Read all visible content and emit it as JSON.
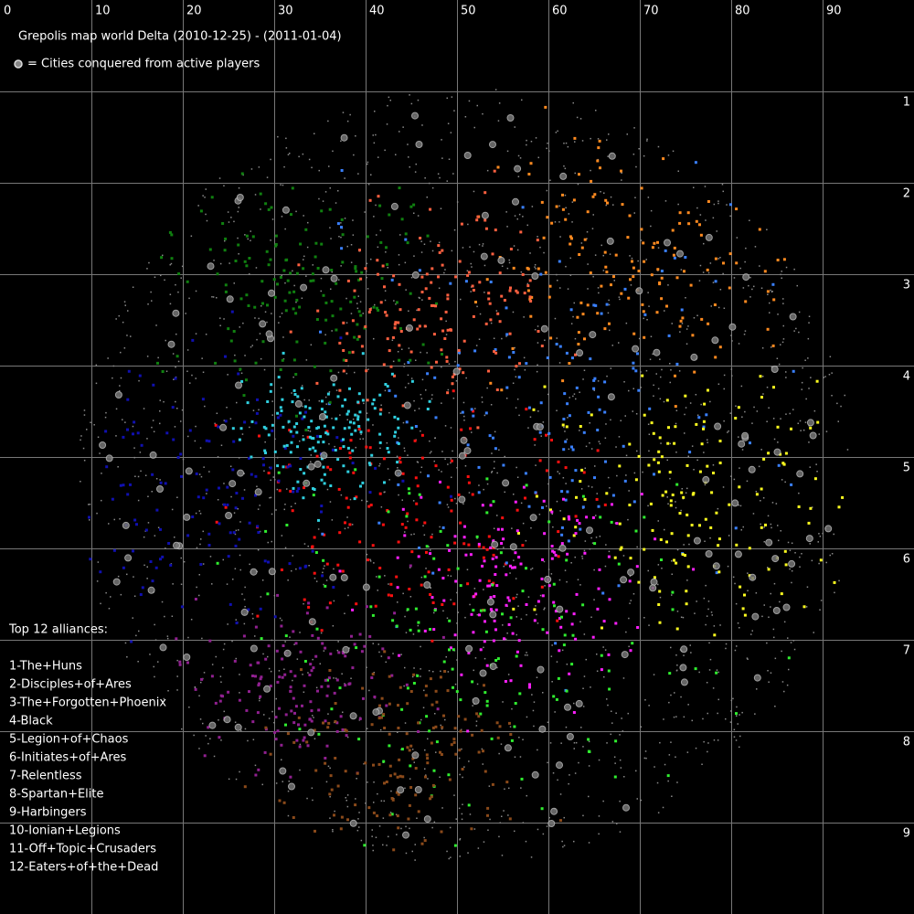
{
  "title": "Grepolis map world Delta (2010-12-25) - (2011-01-04)",
  "conquered_note": "= Cities conquered from active players",
  "x_labels": [
    "0",
    "10",
    "20",
    "30",
    "40",
    "50",
    "60",
    "70",
    "80",
    "90"
  ],
  "y_labels": [
    "1",
    "2",
    "3",
    "4",
    "5",
    "6",
    "7",
    "8",
    "9"
  ],
  "legend_title": "Top 12 alliances:",
  "alliances": [
    {
      "name": "1-The+Huns",
      "color": "#ff1010"
    },
    {
      "name": "2-Disciples+of+Ares",
      "color": "#3a80ff"
    },
    {
      "name": "3-The+Forgotten+Phoenix",
      "color": "#ffff20"
    },
    {
      "name": "4-Black",
      "color": "#ff20ff"
    },
    {
      "name": "5-Legion+of+Chaos",
      "color": "#1010b0"
    },
    {
      "name": "6-Initiates+of+Ares",
      "color": "#30ee30"
    },
    {
      "name": "7-Relentless",
      "color": "#108010"
    },
    {
      "name": "8-Spartan+Elite",
      "color": "#902090"
    },
    {
      "name": "9-Harbingers",
      "color": "#8b4a1a"
    },
    {
      "name": "10-Ionian+Legions",
      "color": "#ff8a20"
    },
    {
      "name": "11-Off+Topic+Crusaders",
      "color": "#ff6040"
    },
    {
      "name": "12-Eaters+of+the+Dead",
      "color": "#30d0e0"
    }
  ]
}
